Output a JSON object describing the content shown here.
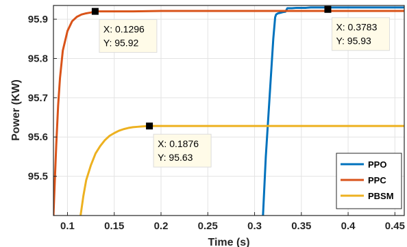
{
  "chart_data": {
    "type": "line",
    "title": "",
    "xlabel": "Time (s)",
    "ylabel": "Power (KW)",
    "xlim": [
      0.085,
      0.46
    ],
    "ylim": [
      95.4,
      95.935
    ],
    "xticks": [
      0.1,
      0.15,
      0.2,
      0.25,
      0.3,
      0.35,
      0.4,
      0.45
    ],
    "xtick_labels": [
      "0.1",
      "0.15",
      "0.2",
      "0.25",
      "0.3",
      "0.35",
      "0.4",
      "0.45"
    ],
    "yticks": [
      95.5,
      95.6,
      95.7,
      95.8,
      95.9
    ],
    "ytick_labels": [
      "95.5",
      "95.6",
      "95.7",
      "95.8",
      "95.9"
    ],
    "grid": true,
    "legend_position": "bottom-right",
    "series": [
      {
        "name": "PPO",
        "color": "#0072BD",
        "x": [
          0.309,
          0.312,
          0.316,
          0.32,
          0.322,
          0.323,
          0.325,
          0.327,
          0.33,
          0.333,
          0.335,
          0.34,
          0.345,
          0.35,
          0.355,
          0.36,
          0.37,
          0.3783,
          0.39,
          0.4,
          0.42,
          0.44,
          0.46
        ],
        "y": [
          95.4,
          95.55,
          95.7,
          95.85,
          95.905,
          95.912,
          95.915,
          95.916,
          95.918,
          95.919,
          95.928,
          95.928,
          95.929,
          95.929,
          95.929,
          95.93,
          95.93,
          95.93,
          95.93,
          95.93,
          95.93,
          95.93,
          95.93
        ]
      },
      {
        "name": "PPC",
        "color": "#D95319",
        "x": [
          0.085,
          0.088,
          0.09,
          0.092,
          0.095,
          0.1,
          0.105,
          0.11,
          0.115,
          0.12,
          0.125,
          0.1296,
          0.14,
          0.15,
          0.17,
          0.2,
          0.25,
          0.3,
          0.35,
          0.4,
          0.46
        ],
        "y": [
          95.4,
          95.58,
          95.68,
          95.75,
          95.82,
          95.87,
          95.895,
          95.906,
          95.912,
          95.915,
          95.917,
          95.92,
          95.92,
          95.92,
          95.92,
          95.921,
          95.921,
          95.921,
          95.921,
          95.921,
          95.921
        ]
      },
      {
        "name": "PBSM",
        "color": "#EDB120",
        "x": [
          0.114,
          0.117,
          0.12,
          0.125,
          0.13,
          0.135,
          0.14,
          0.145,
          0.15,
          0.155,
          0.16,
          0.165,
          0.17,
          0.175,
          0.18,
          0.1876,
          0.2,
          0.25,
          0.3,
          0.35,
          0.4,
          0.46
        ],
        "y": [
          95.4,
          95.45,
          95.49,
          95.528,
          95.558,
          95.577,
          95.592,
          95.603,
          95.61,
          95.616,
          95.62,
          95.623,
          95.625,
          95.626,
          95.627,
          95.628,
          95.628,
          95.628,
          95.628,
          95.628,
          95.628,
          95.628
        ]
      }
    ],
    "annotations": [
      {
        "x": 0.1296,
        "y": 95.92,
        "line1": "X: 0.1296",
        "line2": "Y: 95.92"
      },
      {
        "x": 0.3783,
        "y": 95.925,
        "line1": "X: 0.3783",
        "line2": "Y: 95.93"
      },
      {
        "x": 0.1876,
        "y": 95.628,
        "line1": "X: 0.1876",
        "line2": "Y: 95.63"
      }
    ]
  }
}
